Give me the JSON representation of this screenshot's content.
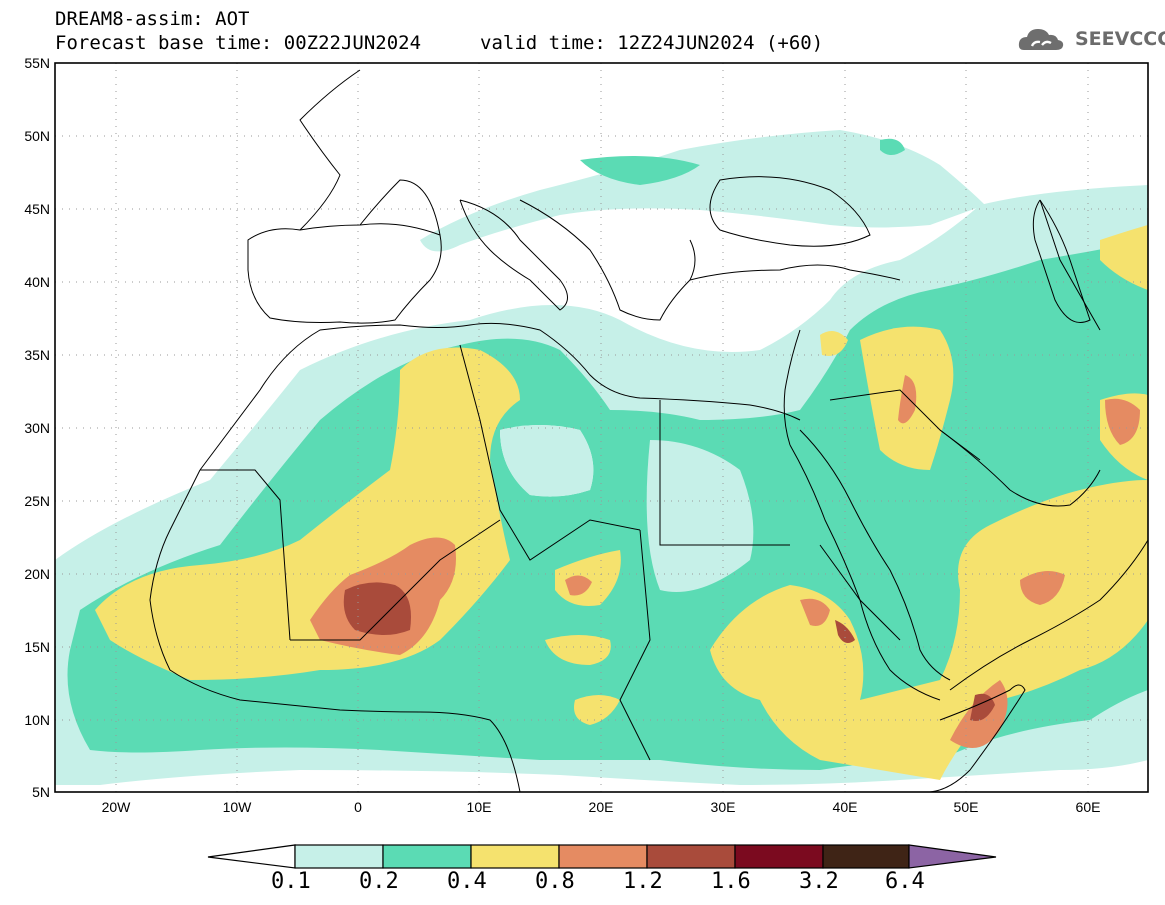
{
  "header": {
    "title": "DREAM8-assim: AOT",
    "base_time": "Forecast base time: 00Z22JUN2024",
    "valid_time": "valid time: 12Z24JUN2024 (+60)",
    "logo_text": "SEEVCCC"
  },
  "map": {
    "variable": "AOT",
    "lat_range": [
      5,
      55
    ],
    "lon_range": [
      -25,
      65
    ],
    "lat_labels": [
      "55N",
      "50N",
      "45N",
      "40N",
      "35N",
      "30N",
      "25N",
      "20N",
      "15N",
      "10N",
      "5N"
    ],
    "lon_labels": [
      "20W",
      "10W",
      "0",
      "10E",
      "20E",
      "30E",
      "40E",
      "50E",
      "60E"
    ],
    "grid": true
  },
  "colorbar": {
    "labels": [
      "0.1",
      "0.2",
      "0.4",
      "0.8",
      "1.2",
      "1.6",
      "3.2",
      "6.4"
    ],
    "colors": [
      "#ffffff",
      "#c6f0e8",
      "#5bdbb4",
      "#f5e26e",
      "#e58b62",
      "#a94b3b",
      "#7b0a1f",
      "#3f2416",
      "#8c64a4"
    ]
  }
}
